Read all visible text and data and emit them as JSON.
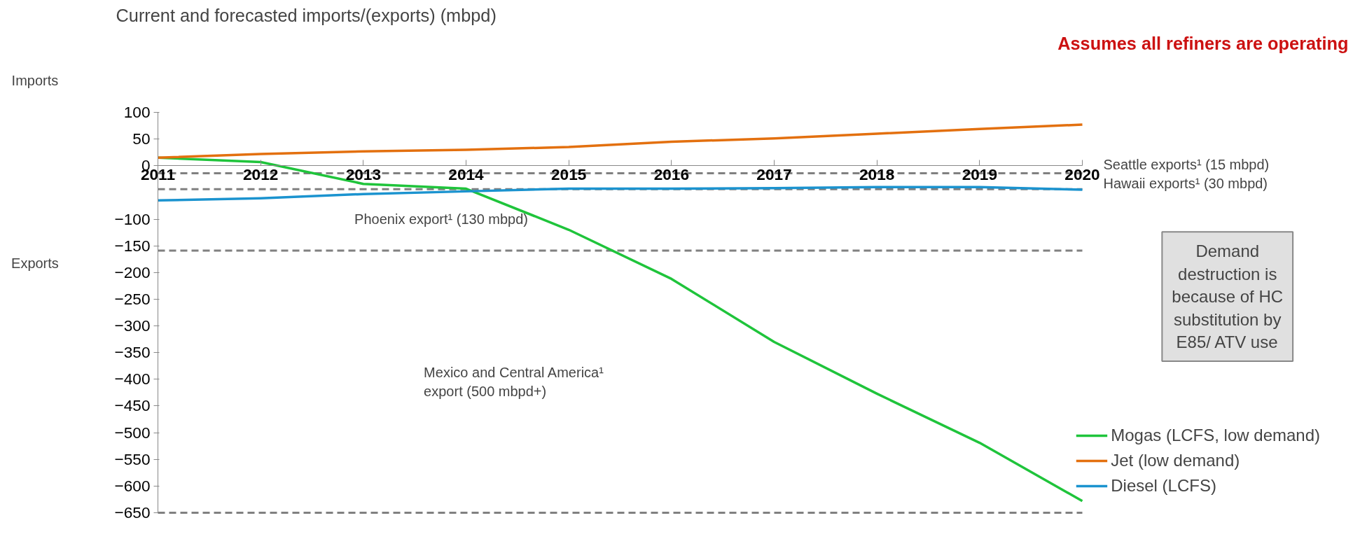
{
  "chart_data": {
    "type": "line",
    "title": "Assumes all refiners are operating",
    "ylabel": "Current and forecasted imports/(exports) (mbpd)",
    "x": [
      2011,
      2012,
      2013,
      2014,
      2015,
      2016,
      2017,
      2018,
      2019,
      2020
    ],
    "series": [
      {
        "name": "Mogas (LCFS, low demand)",
        "color": "#1fc43b",
        "values": [
          15,
          7,
          -34,
          -43,
          -120,
          -212,
          -330,
          -427,
          -519,
          -628
        ]
      },
      {
        "name": "Jet (low demand)",
        "color": "#e3700f",
        "values": [
          15,
          22,
          27,
          30,
          35,
          45,
          51,
          60,
          69,
          77
        ]
      },
      {
        "name": "Diesel (LCFS)",
        "color": "#1b93cf",
        "values": [
          -65,
          -61,
          -53,
          -48,
          -43,
          -43,
          -42,
          -40,
          -40,
          -45
        ]
      }
    ],
    "xlim": [
      2011,
      2020
    ],
    "xticks": [
      2011,
      2012,
      2013,
      2014,
      2015,
      2016,
      2017,
      2018,
      2019,
      2020
    ],
    "ylim": [
      -650,
      100
    ],
    "yticks": [
      100,
      50,
      0,
      -100,
      -150,
      -200,
      -250,
      -300,
      -350,
      -400,
      -450,
      -500,
      -550,
      -600,
      -650
    ],
    "ref_lines": [
      {
        "axis": "y",
        "value": -14,
        "color": "#808080",
        "line_style": "dashed"
      },
      {
        "axis": "y",
        "value": -44,
        "color": "#808080",
        "line_style": "dashed"
      },
      {
        "axis": "y",
        "value": -159,
        "color": "#808080",
        "line_style": "dashed"
      },
      {
        "axis": "y",
        "value": -650,
        "color": "#808080",
        "line_style": "dashed"
      }
    ],
    "annotations": [
      "Imports",
      "Exports",
      "Seattle exports¹  (15 mbpd)",
      "Hawaii exports¹  (30 mbpd)",
      "Phoenix export¹  (130 mbpd)",
      "Mexico and Central America¹\nexport (500 mbpd+)",
      "Demand\ndestruction is\nbecause of HC\nsubstitution by\nE85/ ATV use"
    ],
    "grid": false,
    "legend": "bottom right",
    "marker": "none",
    "line_style": "solid"
  }
}
